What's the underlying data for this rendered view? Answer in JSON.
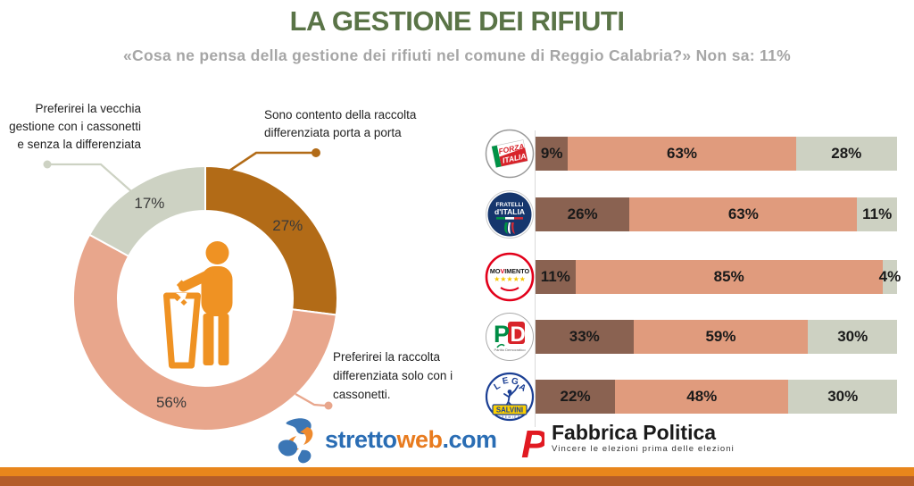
{
  "header": {
    "title": "LA GESTIONE DEI RIFIUTI",
    "subtitle": "«Cosa ne pensa della gestione dei rifiuti nel comune di Reggio Calabria?» Non sa:  11%"
  },
  "chart_data": [
    {
      "type": "pie",
      "variant": "donut",
      "start_angle_deg": 0,
      "direction": "clockwise",
      "center_icon": "littering-person",
      "slices": [
        {
          "label": "Sono contento della raccolta differenziata porta a porta",
          "value": 27,
          "color": "#b26b17"
        },
        {
          "label": "Preferirei la raccolta differenziata solo con i cassonetti.",
          "value": 56,
          "color": "#e8a68c"
        },
        {
          "label": "Preferirei la vecchia gestione con i cassonetti e senza la differenziata",
          "value": 17,
          "color": "#cdd2c3"
        }
      ],
      "value_suffix": "%"
    },
    {
      "type": "bar",
      "orientation": "horizontal-stacked",
      "xlim": [
        0,
        100
      ],
      "value_suffix": "%",
      "categories": [
        "Forza Italia",
        "Fratelli d'Italia",
        "Movimento 5 Stelle",
        "Partito Democratico",
        "Lega Salvini"
      ],
      "category_keys": [
        "forza-italia",
        "fratelli-ditalia",
        "movimento-5-stelle",
        "partito-democratico",
        "lega-salvini"
      ],
      "series": [
        {
          "name": "Sono contento della raccolta differenziata porta a porta",
          "color": "#8a6251",
          "values": [
            9,
            26,
            11,
            33,
            22
          ]
        },
        {
          "name": "Preferirei la raccolta differenziata solo con i cassonetti",
          "color": "#e09b7d",
          "values": [
            63,
            63,
            85,
            59,
            48
          ]
        },
        {
          "name": "Preferirei la vecchia gestione con i cassonetti e senza la differenziata",
          "color": "#cdd1c2",
          "values": [
            28,
            11,
            4,
            30,
            30
          ]
        }
      ]
    }
  ],
  "party_logos": {
    "forza_italia": {
      "line1": "FORZA",
      "line2": "ITALIA"
    },
    "fratelli": {
      "line1": "FRATELLI",
      "line2": "d'ITALIA"
    },
    "m5s": {
      "mo": "MO",
      "v": "V",
      "imento": "IMENTO",
      "stars": "★★★★★"
    },
    "pd": {
      "p": "P",
      "d": "D",
      "sub": "Partito Democratico"
    },
    "lega": {
      "l1": "L",
      "l2": "E",
      "l3": "G",
      "l4": "A",
      "banner": "SALVINI",
      "sub": "PREMIER"
    }
  },
  "footer": {
    "strettoweb": {
      "part1": "stretto",
      "part2": "web",
      "part3": ".com"
    },
    "fabbrica": {
      "name": "Fabbrica Politica",
      "tagline": "Vincere le elezioni prima delle elezioni"
    }
  },
  "colors": {
    "title_green": "#5a7447",
    "subtitle_gray": "#a6a6a6",
    "icon_orange": "#ef9223",
    "stripe_top": "#e8861c",
    "stripe_bottom": "#b45d2a",
    "strettoweb_blue": "#2a6db4",
    "strettoweb_orange": "#e87b1f",
    "fabbrica_red": "#e11a22"
  }
}
